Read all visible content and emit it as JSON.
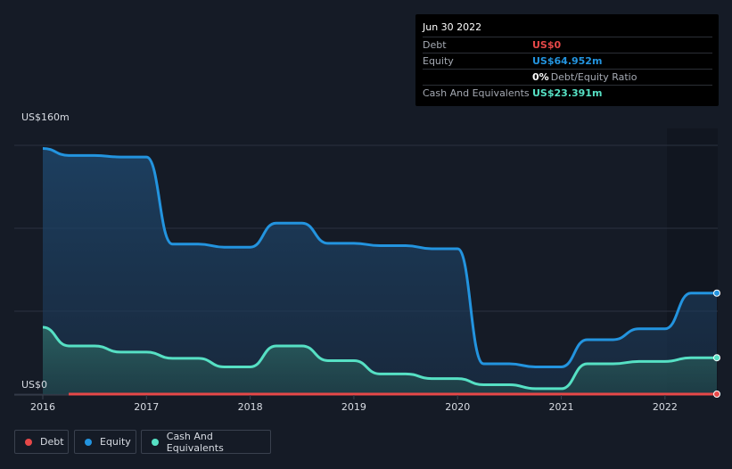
{
  "chart_data": {
    "type": "area",
    "y_unit_label_top": "US$160m",
    "y_unit_label_bottom": "US$0",
    "ylim": [
      0,
      160
    ],
    "xlim": [
      2016.0,
      2022.5
    ],
    "x_ticks": [
      "2016",
      "2017",
      "2018",
      "2019",
      "2020",
      "2021",
      "2022"
    ],
    "grid": true,
    "series": [
      {
        "name": "Debt",
        "color": "#e64848",
        "x": [
          2016.25,
          2016.5,
          2017.0,
          2017.5,
          2018.0,
          2018.5,
          2019.0,
          2019.5,
          2020.0,
          2020.5,
          2021.0,
          2021.5,
          2022.0,
          2022.5
        ],
        "y": [
          0,
          0,
          0,
          0,
          0,
          0,
          0,
          0,
          0,
          0,
          0,
          0,
          0,
          0
        ]
      },
      {
        "name": "Equity",
        "color": "#2394df",
        "x": [
          2016.0,
          2016.25,
          2016.5,
          2016.75,
          2017.0,
          2017.25,
          2017.5,
          2017.75,
          2018.0,
          2018.25,
          2018.5,
          2018.75,
          2019.0,
          2019.25,
          2019.5,
          2019.75,
          2020.0,
          2020.25,
          2020.5,
          2020.75,
          2021.0,
          2021.25,
          2021.5,
          2021.75,
          2022.0,
          2022.25,
          2022.5
        ],
        "y": [
          158,
          153.5,
          153.5,
          152.5,
          152.5,
          96.5,
          96.5,
          94.5,
          94.5,
          110,
          110,
          97,
          97,
          95.5,
          95.5,
          93.5,
          93.5,
          19.5,
          19.5,
          17.5,
          17.5,
          35,
          35,
          42,
          42,
          64.952,
          64.952
        ]
      },
      {
        "name": "Cash And Equivalents",
        "color": "#56e0c4",
        "x": [
          2016.0,
          2016.25,
          2016.5,
          2016.75,
          2017.0,
          2017.25,
          2017.5,
          2017.75,
          2018.0,
          2018.25,
          2018.5,
          2018.75,
          2019.0,
          2019.25,
          2019.5,
          2019.75,
          2020.0,
          2020.25,
          2020.5,
          2020.75,
          2021.0,
          2021.25,
          2021.5,
          2021.75,
          2022.0,
          2022.25,
          2022.5
        ],
        "y": [
          43,
          31,
          31,
          27,
          27,
          23,
          23,
          17.5,
          17.5,
          31,
          31,
          21.5,
          21.5,
          13,
          13,
          10,
          10,
          6,
          6,
          3.5,
          3.5,
          19.5,
          19.5,
          21,
          21,
          23.391,
          23.391
        ]
      }
    ]
  },
  "tooltip": {
    "date": "Jun 30 2022",
    "rows": [
      {
        "label": "Debt",
        "value": "US$0",
        "color": "#e64848"
      },
      {
        "label": "Equity",
        "value": "US$64.952m",
        "color": "#2394df"
      },
      {
        "label": "",
        "value": "0%",
        "color": "#ffffff",
        "extra": "Debt/Equity Ratio"
      },
      {
        "label": "Cash And Equivalents",
        "value": "US$23.391m",
        "color": "#56e0c4"
      }
    ]
  },
  "legend": [
    {
      "label": "Debt",
      "color": "#e64848"
    },
    {
      "label": "Equity",
      "color": "#2394df"
    },
    {
      "label": "Cash And Equivalents",
      "color": "#56e0c4"
    }
  ]
}
